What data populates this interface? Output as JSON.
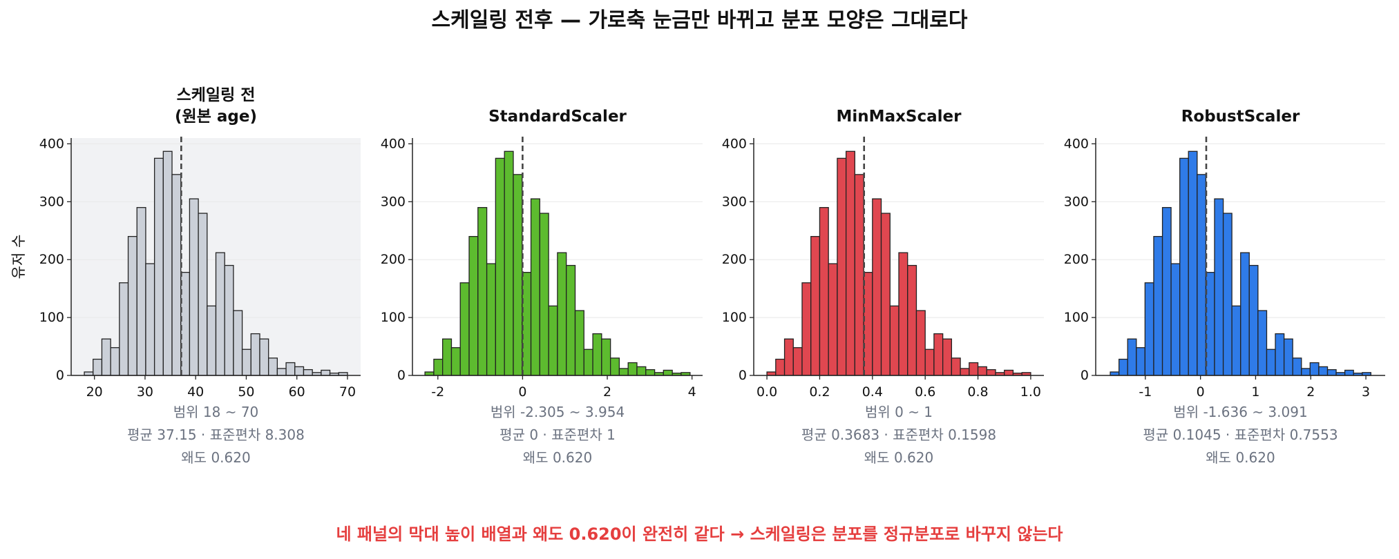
{
  "figure": {
    "suptitle": "스케일링 전후 — 가로축 눈금만 바뀌고 분포 모양은 그대로다",
    "footnote": "네 패널의 막대 높이 배열과 왜도 0.620이 완전히 같다 → 스케일링은 분포를 정규분포로 바꾸지 않는다"
  },
  "colors": {
    "grid": "#e8e8e8",
    "axis": "#222222",
    "stats_text": "#6b7280",
    "mean_line": "#444444",
    "bar_edge": "#222222",
    "original_panel_bg": "#f1f2f4"
  },
  "chart_data": [
    {
      "type": "bar",
      "title": "스케일링 전\n(원본 age)",
      "ylabel": "유저 수",
      "bar_color": "#cbd0d8",
      "xlim": [
        15.4,
        72.6
      ],
      "ylim": [
        0,
        410
      ],
      "xticks": [
        20,
        30,
        40,
        50,
        60,
        70
      ],
      "xtick_labels": [
        "20",
        "30",
        "40",
        "50",
        "60",
        "70"
      ],
      "yticks": [
        0,
        100,
        200,
        300,
        400
      ],
      "bin_edges": [
        18,
        19.733,
        21.467,
        23.2,
        24.933,
        26.667,
        28.4,
        30.133,
        31.867,
        33.6,
        35.333,
        37.067,
        38.8,
        40.533,
        42.267,
        44,
        45.733,
        47.467,
        49.2,
        50.933,
        52.667,
        54.4,
        56.133,
        57.867,
        59.6,
        61.333,
        63.067,
        64.8,
        66.533,
        68.267,
        70
      ],
      "counts": [
        6,
        28,
        63,
        48,
        160,
        240,
        290,
        193,
        375,
        387,
        347,
        178,
        305,
        280,
        120,
        212,
        190,
        112,
        45,
        72,
        63,
        30,
        12,
        22,
        15,
        10,
        5,
        9,
        4,
        5
      ],
      "mean_line_x": 37.15,
      "stats": [
        "범위 18 ~ 70",
        "평균 37.15 · 표준편차 8.308",
        "왜도 0.620"
      ]
    },
    {
      "type": "bar",
      "title": "StandardScaler",
      "ylabel": "",
      "bar_color": "#5dbb2f",
      "xlim": [
        -2.6,
        4.25
      ],
      "ylim": [
        0,
        410
      ],
      "xticks": [
        -2,
        0,
        2,
        4
      ],
      "xtick_labels": [
        "-2",
        "0",
        "2",
        "4"
      ],
      "yticks": [
        0,
        100,
        200,
        300,
        400
      ],
      "bin_edges": [
        -2.305,
        -2.096,
        -1.888,
        -1.679,
        -1.471,
        -1.262,
        -1.054,
        -0.845,
        -0.637,
        -0.428,
        -0.219,
        -0.011,
        0.198,
        0.406,
        0.615,
        0.823,
        1.032,
        1.241,
        1.449,
        1.658,
        1.866,
        2.075,
        2.283,
        2.492,
        2.7,
        2.909,
        3.118,
        3.326,
        3.535,
        3.743,
        3.954
      ],
      "counts": [
        6,
        28,
        63,
        48,
        160,
        240,
        290,
        193,
        375,
        387,
        347,
        178,
        305,
        280,
        120,
        212,
        190,
        112,
        45,
        72,
        63,
        30,
        12,
        22,
        15,
        10,
        5,
        9,
        4,
        5
      ],
      "mean_line_x": 0,
      "stats": [
        "범위 -2.305 ~ 3.954",
        "평균 0 · 표준편차 1",
        "왜도 0.620"
      ]
    },
    {
      "type": "bar",
      "title": "MinMaxScaler",
      "ylabel": "",
      "bar_color": "#e04750",
      "xlim": [
        -0.05,
        1.05
      ],
      "ylim": [
        0,
        410
      ],
      "xticks": [
        0.0,
        0.2,
        0.4,
        0.6,
        0.8,
        1.0
      ],
      "xtick_labels": [
        "0.0",
        "0.2",
        "0.4",
        "0.6",
        "0.8",
        "1.0"
      ],
      "yticks": [
        0,
        100,
        200,
        300,
        400
      ],
      "bin_edges": [
        0,
        0.0333,
        0.0667,
        0.1,
        0.1333,
        0.1667,
        0.2,
        0.2333,
        0.2667,
        0.3,
        0.3333,
        0.3667,
        0.4,
        0.4333,
        0.4667,
        0.5,
        0.5333,
        0.5667,
        0.6,
        0.6333,
        0.6667,
        0.7,
        0.7333,
        0.7667,
        0.8,
        0.8333,
        0.8667,
        0.9,
        0.9333,
        0.9667,
        1
      ],
      "counts": [
        6,
        28,
        63,
        48,
        160,
        240,
        290,
        193,
        375,
        387,
        347,
        178,
        305,
        280,
        120,
        212,
        190,
        112,
        45,
        72,
        63,
        30,
        12,
        22,
        15,
        10,
        5,
        9,
        4,
        5
      ],
      "mean_line_x": 0.3683,
      "stats": [
        "범위 0 ~ 1",
        "평균 0.3683 · 표준편차 0.1598",
        "왜도 0.620"
      ]
    },
    {
      "type": "bar",
      "title": "RobustScaler",
      "ylabel": "",
      "bar_color": "#2f7be8",
      "xlim": [
        -1.9,
        3.35
      ],
      "ylim": [
        0,
        410
      ],
      "xticks": [
        -1,
        0,
        1,
        2,
        3
      ],
      "xtick_labels": [
        "-1",
        "0",
        "1",
        "2",
        "3"
      ],
      "yticks": [
        0,
        100,
        200,
        300,
        400
      ],
      "bin_edges": [
        -1.636,
        -1.478,
        -1.321,
        -1.163,
        -1.006,
        -0.848,
        -0.69,
        -0.533,
        -0.375,
        -0.218,
        -0.06,
        0.098,
        0.255,
        0.413,
        0.57,
        0.728,
        0.885,
        1.043,
        1.201,
        1.358,
        1.516,
        1.673,
        1.831,
        1.988,
        2.146,
        2.304,
        2.461,
        2.619,
        2.776,
        2.934,
        3.091
      ],
      "counts": [
        6,
        28,
        63,
        48,
        160,
        240,
        290,
        193,
        375,
        387,
        347,
        178,
        305,
        280,
        120,
        212,
        190,
        112,
        45,
        72,
        63,
        30,
        12,
        22,
        15,
        10,
        5,
        9,
        4,
        5
      ],
      "mean_line_x": 0.1045,
      "stats": [
        "범위 -1.636 ~ 3.091",
        "평균 0.1045 · 표준편차 0.7553",
        "왜도 0.620"
      ]
    }
  ]
}
